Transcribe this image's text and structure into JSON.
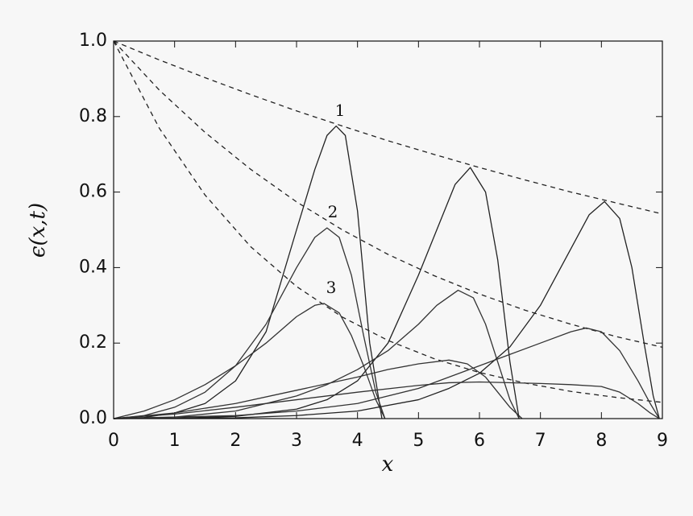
{
  "chart_data": {
    "type": "line",
    "xlabel": "x",
    "ylabel": "ϵ(x,t)",
    "xlim": [
      0,
      9
    ],
    "ylim": [
      0,
      1
    ],
    "xticks": [
      0,
      1,
      2,
      3,
      4,
      5,
      6,
      7,
      8,
      9
    ],
    "yticks": [
      {
        "value": 0,
        "label": "0.0"
      },
      0.2,
      0.4,
      0.6,
      0.8,
      {
        "value": 1,
        "label": "1.0"
      }
    ],
    "annotations": [
      "1",
      "2",
      "3"
    ],
    "series": [
      {
        "color": "#222222",
        "style": "dashed",
        "x": [
          0,
          0.75,
          1.5,
          2.25,
          3,
          3.75,
          4.5,
          5.25,
          6,
          6.75,
          7.5,
          8.25,
          9
        ],
        "values": [
          1,
          0.95,
          0.903,
          0.858,
          0.815,
          0.775,
          0.736,
          0.7,
          0.665,
          0.632,
          0.6,
          0.571,
          0.542
        ]
      },
      {
        "color": "#222222",
        "style": "dashed",
        "x": [
          0,
          0.75,
          1.5,
          2.25,
          3,
          3.75,
          4.5,
          5.25,
          6,
          6.75,
          7.5,
          8.25,
          9
        ],
        "values": [
          1,
          0.87,
          0.758,
          0.66,
          0.574,
          0.5,
          0.435,
          0.379,
          0.33,
          0.287,
          0.25,
          0.217,
          0.189
        ]
      },
      {
        "color": "#222222",
        "style": "dashed",
        "x": [
          0,
          0.75,
          1.5,
          2.25,
          3,
          3.75,
          4.5,
          5.25,
          6,
          6.75,
          7.5,
          8.25,
          9
        ],
        "values": [
          1,
          0.769,
          0.592,
          0.455,
          0.35,
          0.269,
          0.207,
          0.159,
          0.122,
          0.094,
          0.072,
          0.056,
          0.043
        ]
      },
      {
        "color": "#222222",
        "style": "solid",
        "x": [
          0,
          0.5,
          1,
          1.5,
          2,
          2.5,
          3,
          3.3,
          3.5,
          3.65,
          3.8,
          4,
          4.2,
          4.4
        ],
        "values": [
          0,
          0.003,
          0.015,
          0.04,
          0.1,
          0.23,
          0.5,
          0.66,
          0.75,
          0.775,
          0.75,
          0.55,
          0.2,
          0
        ]
      },
      {
        "color": "#333333",
        "style": "solid",
        "x": [
          0,
          0.5,
          1,
          1.5,
          2,
          2.5,
          3,
          3.3,
          3.5,
          3.7,
          3.9,
          4.1,
          4.3,
          4.45
        ],
        "values": [
          0,
          0.008,
          0.03,
          0.07,
          0.14,
          0.25,
          0.4,
          0.48,
          0.505,
          0.48,
          0.38,
          0.22,
          0.07,
          0
        ]
      },
      {
        "color": "#333333",
        "style": "solid",
        "x": [
          0,
          0.5,
          1,
          1.5,
          2,
          2.5,
          3,
          3.3,
          3.45,
          3.7,
          3.9,
          4.1,
          4.3,
          4.45
        ],
        "values": [
          0,
          0.02,
          0.05,
          0.09,
          0.14,
          0.2,
          0.27,
          0.3,
          0.305,
          0.28,
          0.22,
          0.14,
          0.05,
          0
        ]
      },
      {
        "color": "#222222",
        "style": "solid",
        "x": [
          0,
          1,
          2,
          3,
          3.5,
          4,
          4.5,
          5,
          5.3,
          5.6,
          5.85,
          6.1,
          6.3,
          6.5,
          6.65
        ],
        "values": [
          0,
          0.001,
          0.006,
          0.025,
          0.05,
          0.1,
          0.2,
          0.38,
          0.5,
          0.62,
          0.665,
          0.6,
          0.42,
          0.15,
          0
        ]
      },
      {
        "color": "#333333",
        "style": "solid",
        "x": [
          0,
          1,
          2,
          3,
          3.5,
          4,
          4.5,
          5,
          5.3,
          5.65,
          5.9,
          6.1,
          6.3,
          6.5,
          6.65
        ],
        "values": [
          0,
          0.004,
          0.02,
          0.06,
          0.09,
          0.13,
          0.18,
          0.25,
          0.3,
          0.34,
          0.32,
          0.25,
          0.15,
          0.05,
          0
        ]
      },
      {
        "color": "#333333",
        "style": "solid",
        "x": [
          0,
          1,
          2,
          3,
          4,
          4.5,
          5,
          5.5,
          5.8,
          6.1,
          6.3,
          6.5,
          6.7
        ],
        "values": [
          0,
          0.015,
          0.04,
          0.075,
          0.11,
          0.13,
          0.145,
          0.155,
          0.145,
          0.11,
          0.07,
          0.03,
          0
        ]
      },
      {
        "color": "#222222",
        "style": "solid",
        "x": [
          0,
          2,
          3,
          4,
          5,
          5.5,
          6,
          6.5,
          7,
          7.5,
          7.8,
          8.05,
          8.3,
          8.5,
          8.7,
          8.85,
          8.95
        ],
        "values": [
          0,
          0.002,
          0.008,
          0.02,
          0.05,
          0.08,
          0.12,
          0.19,
          0.3,
          0.45,
          0.54,
          0.575,
          0.53,
          0.4,
          0.2,
          0.06,
          0
        ]
      },
      {
        "color": "#333333",
        "style": "solid",
        "x": [
          0,
          2,
          3,
          4,
          5,
          6,
          6.5,
          7,
          7.5,
          7.75,
          8,
          8.3,
          8.6,
          8.8,
          8.95
        ],
        "values": [
          0,
          0.008,
          0.02,
          0.04,
          0.08,
          0.14,
          0.17,
          0.2,
          0.23,
          0.24,
          0.23,
          0.18,
          0.1,
          0.04,
          0
        ]
      },
      {
        "color": "#333333",
        "style": "solid",
        "x": [
          0,
          1,
          2,
          3,
          4,
          5,
          5.5,
          6,
          7,
          7.5,
          8,
          8.3,
          8.6,
          8.8,
          8.95
        ],
        "values": [
          0,
          0.012,
          0.03,
          0.05,
          0.07,
          0.088,
          0.095,
          0.097,
          0.093,
          0.09,
          0.085,
          0.07,
          0.04,
          0.015,
          0
        ]
      }
    ]
  }
}
